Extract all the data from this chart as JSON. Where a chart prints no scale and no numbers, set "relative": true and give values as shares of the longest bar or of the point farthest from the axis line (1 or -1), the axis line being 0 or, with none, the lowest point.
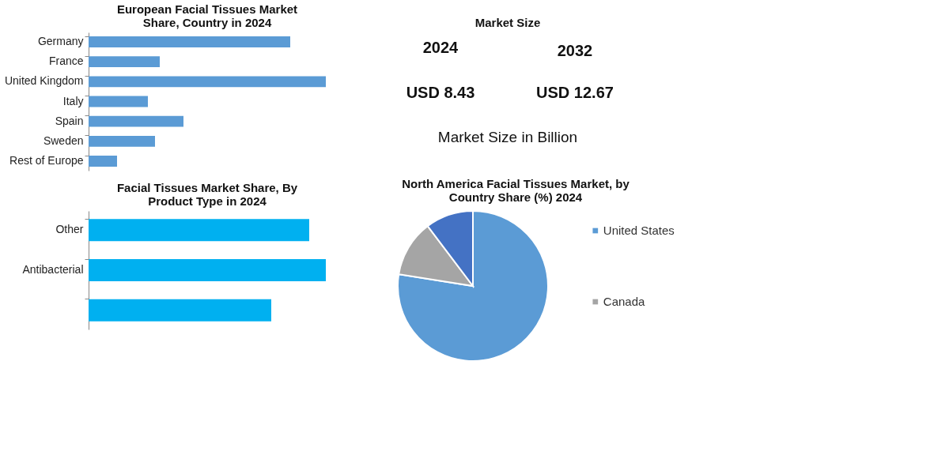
{
  "chart_data": [
    {
      "type": "bar",
      "orientation": "horizontal",
      "relative": true,
      "title": "European Facial Tissues Market Share, Country  in 2024",
      "categories": [
        "Germany",
        "France",
        "United Kingdom",
        "Italy",
        "Spain",
        "Sweden",
        "Rest of Europe"
      ],
      "values": [
        0.85,
        0.3,
        1,
        0.25,
        0.4,
        0.28,
        0.12
      ],
      "color": "#5b9bd5"
    },
    {
      "type": "bar",
      "orientation": "horizontal",
      "relative": true,
      "title": "Facial Tissues Market Share, By Product Type in 2024",
      "categories": [
        "Other",
        "Antibacterial",
        null
      ],
      "values": [
        0.93,
        1,
        0.77
      ],
      "color": "#00b0f0"
    },
    {
      "type": "other",
      "title": "Market Size",
      "annotations": [
        "2024",
        "2032",
        "USD 8.43",
        "USD 12.67",
        "Market Size in Billion"
      ]
    },
    {
      "type": "pie",
      "title": "North America Facial Tissues Market, by Country Share (%) 2024",
      "categories": [
        "United States",
        "Canada",
        null
      ],
      "values": [
        77.5,
        12.2,
        10.3
      ],
      "colors": [
        "#5b9bd5",
        "#a5a5a5",
        "#4472c4"
      ],
      "legend": "right"
    }
  ]
}
